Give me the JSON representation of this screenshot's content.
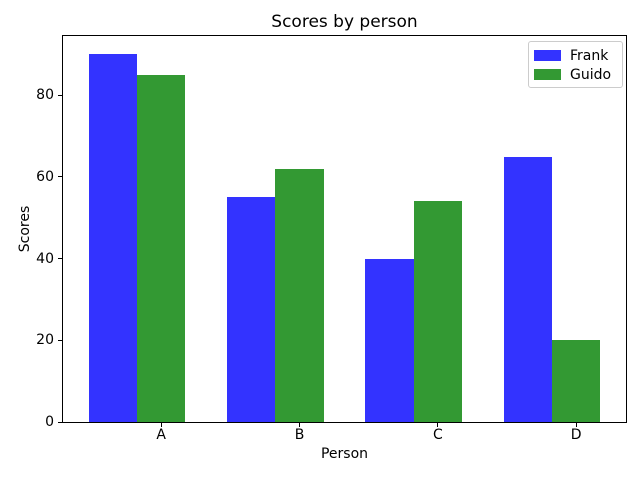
{
  "chart_data": {
    "type": "bar",
    "title": "Scores by person",
    "xlabel": "Person",
    "ylabel": "Scores",
    "categories": [
      "A",
      "B",
      "C",
      "D"
    ],
    "series": [
      {
        "name": "Frank",
        "color": "#3333ff",
        "values": [
          90,
          55,
          40,
          65
        ]
      },
      {
        "name": "Guido",
        "color": "#339933",
        "values": [
          85,
          62,
          54,
          20
        ]
      }
    ],
    "yticks": [
      0,
      20,
      40,
      60,
      80
    ],
    "ylim": [
      0,
      94.5
    ],
    "bar_width": 0.35,
    "grid": false,
    "legend_position": "upper right",
    "axis_color": "#000000",
    "background_color": "#ffffff"
  }
}
